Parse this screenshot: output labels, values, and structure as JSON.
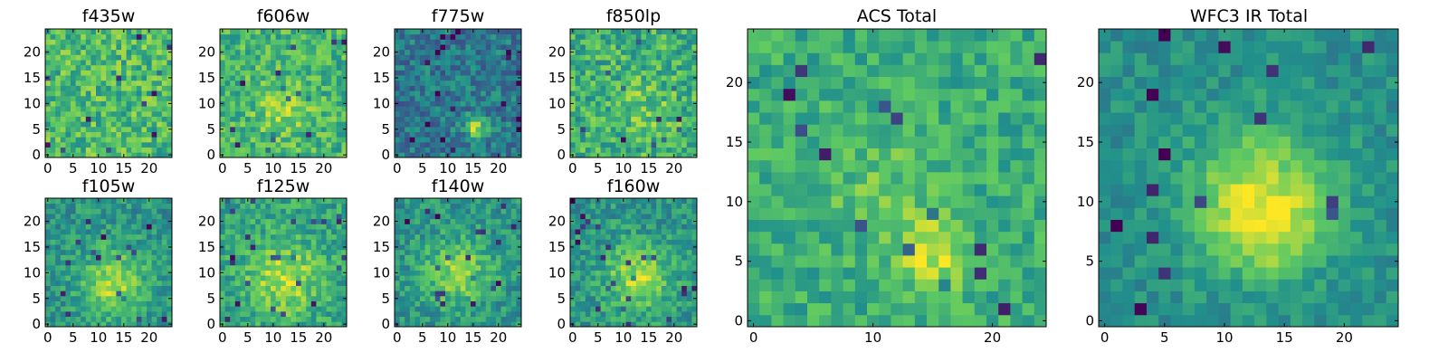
{
  "figure": {
    "background": "#ffffff",
    "colormap": "viridis",
    "colormap_colors": [
      "#440154",
      "#3b528b",
      "#21918c",
      "#5ec962",
      "#fde725"
    ]
  },
  "chart_data": [
    {
      "type": "heatmap",
      "title": "f435w",
      "grid_size": 25,
      "xlim": [
        -0.5,
        24.5
      ],
      "ylim": [
        -0.5,
        24.5
      ],
      "xticks": [
        0,
        5,
        10,
        15,
        20
      ],
      "yticks": [
        0,
        5,
        10,
        15,
        20
      ],
      "background_level": 0.68,
      "noise": 0.2,
      "blobs": []
    },
    {
      "type": "heatmap",
      "title": "f606w",
      "grid_size": 25,
      "xlim": [
        -0.5,
        24.5
      ],
      "ylim": [
        -0.5,
        24.5
      ],
      "xticks": [
        0,
        5,
        10,
        15,
        20
      ],
      "yticks": [
        0,
        5,
        10,
        15,
        20
      ],
      "background_level": 0.66,
      "noise": 0.18,
      "blobs": [
        [
          12,
          8,
          4,
          0.15
        ]
      ]
    },
    {
      "type": "heatmap",
      "title": "f775w",
      "grid_size": 25,
      "xlim": [
        -0.5,
        24.5
      ],
      "ylim": [
        -0.5,
        24.5
      ],
      "xticks": [
        0,
        5,
        10,
        15,
        20
      ],
      "yticks": [
        0,
        5,
        10,
        15,
        20
      ],
      "background_level": 0.4,
      "noise": 0.17,
      "blobs": [
        [
          15.5,
          5.5,
          1.6,
          0.5
        ]
      ]
    },
    {
      "type": "heatmap",
      "title": "f850lp",
      "grid_size": 25,
      "xlim": [
        -0.5,
        24.5
      ],
      "ylim": [
        -0.5,
        24.5
      ],
      "xticks": [
        0,
        5,
        10,
        15,
        20
      ],
      "yticks": [
        0,
        5,
        10,
        15,
        20
      ],
      "background_level": 0.64,
      "noise": 0.2,
      "blobs": [
        [
          14,
          9,
          4,
          0.12
        ]
      ]
    },
    {
      "type": "heatmap",
      "title": "f105w",
      "grid_size": 25,
      "xlim": [
        -0.5,
        24.5
      ],
      "ylim": [
        -0.5,
        24.5
      ],
      "xticks": [
        0,
        5,
        10,
        15,
        20
      ],
      "yticks": [
        0,
        5,
        10,
        15,
        20
      ],
      "background_level": 0.52,
      "noise": 0.15,
      "blobs": [
        [
          13,
          8,
          4.5,
          0.35
        ]
      ]
    },
    {
      "type": "heatmap",
      "title": "f125w",
      "grid_size": 25,
      "xlim": [
        -0.5,
        24.5
      ],
      "ylim": [
        -0.5,
        24.5
      ],
      "xticks": [
        0,
        5,
        10,
        15,
        20
      ],
      "yticks": [
        0,
        5,
        10,
        15,
        20
      ],
      "background_level": 0.58,
      "noise": 0.16,
      "blobs": [
        [
          12,
          9,
          5,
          0.3
        ]
      ]
    },
    {
      "type": "heatmap",
      "title": "f140w",
      "grid_size": 25,
      "xlim": [
        -0.5,
        24.5
      ],
      "ylim": [
        -0.5,
        24.5
      ],
      "xticks": [
        0,
        5,
        10,
        15,
        20
      ],
      "yticks": [
        0,
        5,
        10,
        15,
        20
      ],
      "background_level": 0.52,
      "noise": 0.15,
      "blobs": [
        [
          12,
          10,
          4.5,
          0.3
        ]
      ]
    },
    {
      "type": "heatmap",
      "title": "f160w",
      "grid_size": 25,
      "xlim": [
        -0.5,
        24.5
      ],
      "ylim": [
        -0.5,
        24.5
      ],
      "xticks": [
        0,
        5,
        10,
        15,
        20
      ],
      "yticks": [
        0,
        5,
        10,
        15,
        20
      ],
      "background_level": 0.52,
      "noise": 0.15,
      "blobs": [
        [
          13,
          9,
          4.5,
          0.35
        ]
      ]
    },
    {
      "type": "heatmap",
      "title": "ACS Total",
      "grid_size": 25,
      "xlim": [
        -0.5,
        24.5
      ],
      "ylim": [
        -0.5,
        24.5
      ],
      "xticks": [
        0,
        10,
        20
      ],
      "yticks": [
        0,
        5,
        10,
        15,
        20
      ],
      "background_level": 0.62,
      "noise": 0.14,
      "blobs": [
        [
          15,
          5.5,
          2.2,
          0.3
        ],
        [
          11,
          12,
          4,
          0.1
        ]
      ]
    },
    {
      "type": "heatmap",
      "title": "WFC3 IR Total",
      "grid_size": 25,
      "xlim": [
        -0.5,
        24.5
      ],
      "ylim": [
        -0.5,
        24.5
      ],
      "xticks": [
        0,
        5,
        10,
        15,
        20
      ],
      "yticks": [
        0,
        5,
        10,
        15,
        20
      ],
      "background_level": 0.5,
      "noise": 0.1,
      "blobs": [
        [
          13,
          10,
          4,
          0.45
        ],
        [
          14,
          7,
          2,
          0.15
        ]
      ]
    }
  ]
}
